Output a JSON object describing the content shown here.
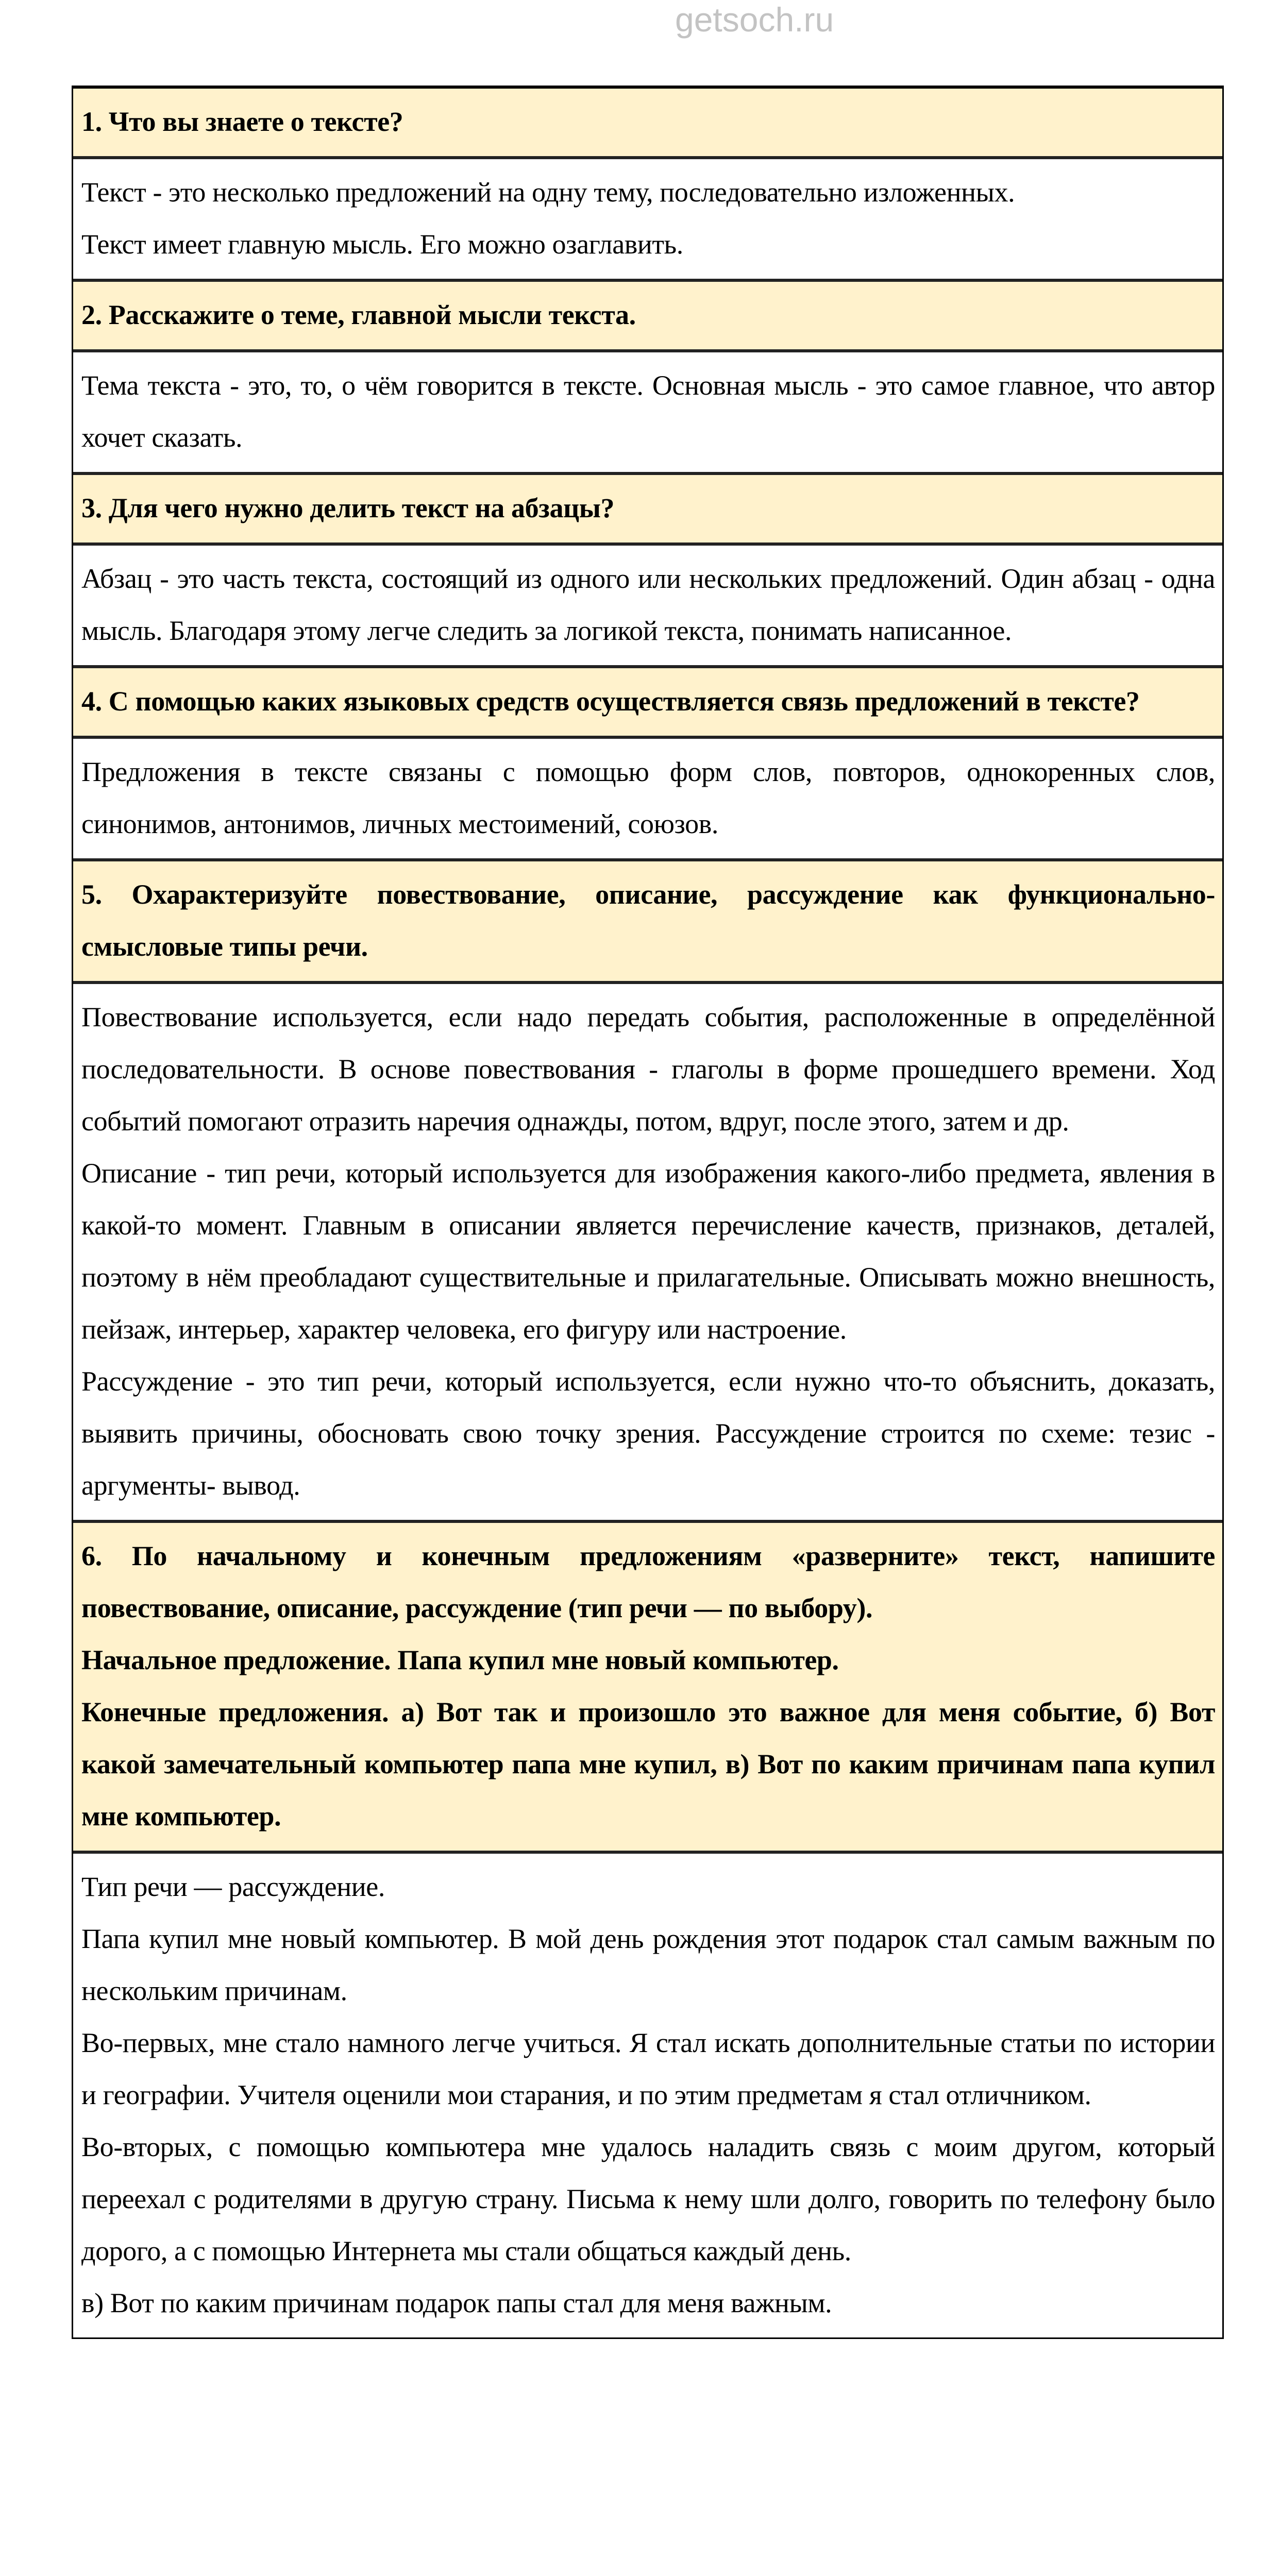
{
  "watermark": "getsoch.ru",
  "colors": {
    "question_bg": "#FFF2CC",
    "answer_bg": "#FFFFFF",
    "border": "#000000"
  },
  "items": [
    {
      "question": [
        "1. Что вы знаете о тексте?"
      ],
      "answer": [
        "Текст - это несколько предложений на одну тему, последовательно изложенных.",
        "Текст имеет главную мысль. Его можно озаглавить."
      ]
    },
    {
      "question": [
        "2. Расскажите о теме, главной мысли текста."
      ],
      "answer": [
        "Тема текста - это, то, о чём говорится в тексте. Основная мысль - это самое главное, что автор хочет сказать."
      ]
    },
    {
      "question": [
        "3. Для чего нужно делить текст на абзацы?"
      ],
      "answer": [
        "Абзац - это часть текста, состоящий из одного или нескольких предложений. Один абзац - одна мысль. Благодаря этому легче следить за логикой текста, понимать написанное."
      ]
    },
    {
      "question": [
        "4. С помощью каких языковых средств осуществляется связь предложений в тексте?"
      ],
      "answer": [
        "Предложения в тексте связаны с помощью форм слов, повторов, однокоренных слов, синонимов, антонимов, личных местоимений, союзов."
      ]
    },
    {
      "question": [
        "5. Охарактеризуйте повествование, описание, рассуждение как функционально-смысловые типы речи."
      ],
      "answer": [
        "Повествование используется, если надо передать события, расположенные в определённой последовательности. В основе повествования - глаголы в форме прошедшего времени. Ход событий помогают отразить наречия однажды, потом, вдруг, после этого, затем и др.",
        "Описание  - тип речи, который используется для изображения какого-либо предмета, явления в какой-то момент. Главным в описании является перечисление качеств, признаков, деталей, поэтому в нём преобладают существительные и прилагательные. Описывать можно внешность, пейзаж, интерьер, характер человека, его фигуру или настроение.",
        "Рассуждение - это тип речи, который используется, если нужно что-то объяснить, доказать, выявить причины, обосновать свою точку зрения. Рассуждение строится по схеме: тезис - аргументы- вывод."
      ]
    },
    {
      "question": [
        "6. По начальному и конечным предложениям «разверните» текст, напишите повествование, описание, рассуждение (тип речи — по выбору).",
        "Начальное предложение. Папа купил мне новый компьютер.",
        "Конечные предложения. а) Вот так и произошло это важное для меня событие, б) Вот какой замечательный компьютер папа мне купил, в) Вот по каким причинам папа купил мне компьютер."
      ],
      "answer": [
        "Тип речи — рассуждение.",
        "Папа купил мне новый компьютер. В мой день рождения этот подарок стал самым важным по нескольким причинам.",
        "Во-первых, мне стало намного легче учиться. Я стал искать дополнительные статьи по истории и географии. Учителя оценили мои старания, и по этим предметам я стал отличником.",
        "Во-вторых, с помощью компьютера мне удалось наладить связь с моим другом, который переехал с родителями в другую страну. Письма к нему шли долго, говорить по телефону было дорого, а с помощью Интернета мы стали общаться каждый день.",
        "в) Вот по каким причинам подарок папы стал для меня важным."
      ]
    }
  ]
}
